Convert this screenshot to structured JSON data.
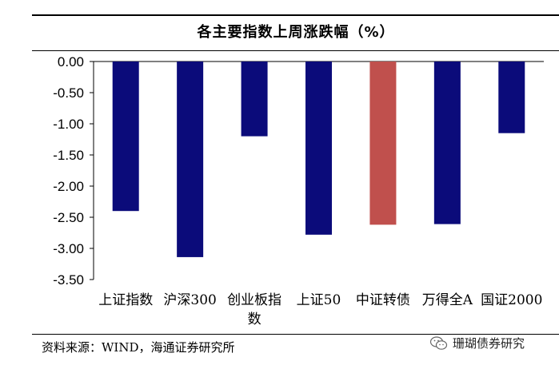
{
  "title": "各主要指数上周涨跌幅（%）",
  "source": "资料来源：WIND，海通证券研究所",
  "watermark": {
    "text": "珊瑚债券研究",
    "icon": "wechat-icon"
  },
  "colors": {
    "primary_bar": "#0b0b7a",
    "highlight_bar": "#c0504d"
  },
  "chart_data": {
    "type": "bar",
    "title": "各主要指数上周涨跌幅（%）",
    "categories": [
      "上证指数",
      "沪深300",
      "创业板指数",
      "上证50",
      "中证转债",
      "万得全A",
      "国证2000"
    ],
    "category_label_lines": [
      [
        "上证指数"
      ],
      [
        "沪深300"
      ],
      [
        "创业板指",
        "数"
      ],
      [
        "上证50"
      ],
      [
        "中证转债"
      ],
      [
        "万得全A"
      ],
      [
        "国证2000"
      ]
    ],
    "values": [
      -2.4,
      -3.14,
      -1.2,
      -2.78,
      -2.62,
      -2.61,
      -1.15
    ],
    "highlight_index": 4,
    "ylim": [
      -3.5,
      0
    ],
    "yticks": [
      "0.00",
      "-0.50",
      "-1.00",
      "-1.50",
      "-2.00",
      "-2.50",
      "-3.00",
      "-3.50"
    ],
    "xlabel": "",
    "ylabel": "",
    "grid": false,
    "legend": "none"
  }
}
